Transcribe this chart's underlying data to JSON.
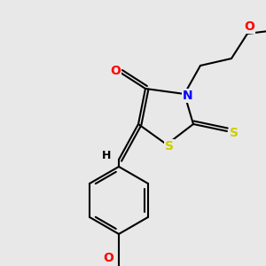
{
  "bg_color": "#e8e8e8",
  "bond_color": "#000000",
  "atom_colors": {
    "O": "#ff0000",
    "N": "#0000ff",
    "S": "#cccc00",
    "H": "#000000",
    "C": "#000000"
  },
  "line_width": 1.5,
  "font_size_atom": 10
}
